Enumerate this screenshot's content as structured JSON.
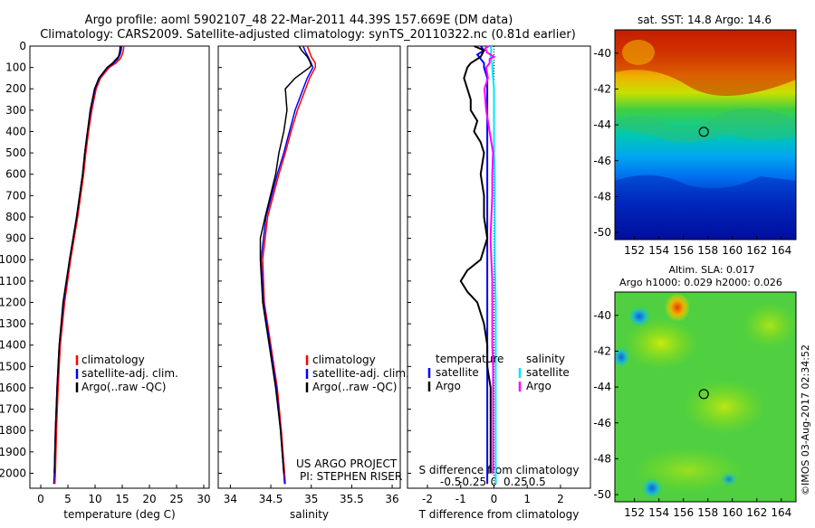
{
  "header": {
    "line1": "Argo profile: aoml 5902107_48 22-Mar-2011 44.39S 157.669E (DM data)",
    "line2": "Climatology: CARS2009. Satellite-adjusted climatology: synTS_20110322.nc (0.81d earlier)"
  },
  "colors": {
    "climatology": "#ff0000",
    "satellite": "#0000ff",
    "argo": "#000000",
    "salinity_satellite": "#00e5ff",
    "salinity_argo": "#ff00ff"
  },
  "chart_data": [
    {
      "type": "line",
      "id": "temperature",
      "xlabel": "temperature (deg C)",
      "ylabel": "",
      "xlim": [
        -2,
        31
      ],
      "ylim": [
        2070,
        0
      ],
      "xticks": [
        0,
        5,
        10,
        15,
        20,
        25,
        30
      ],
      "yticks": [
        0,
        100,
        200,
        300,
        400,
        500,
        600,
        700,
        800,
        900,
        1000,
        1100,
        1200,
        1300,
        1400,
        1500,
        1600,
        1700,
        1800,
        1900,
        2000
      ],
      "legend": [
        "climatology",
        "satellite-adj. clim.",
        "Argo(..raw -QC)"
      ],
      "series": [
        {
          "name": "climatology",
          "color": "#ff0000",
          "depth": [
            0,
            20,
            40,
            60,
            80,
            100,
            150,
            200,
            300,
            400,
            500,
            600,
            800,
            1000,
            1200,
            1400,
            1600,
            1800,
            2000,
            2050
          ],
          "values": [
            15.3,
            15.2,
            15.0,
            14.6,
            13.8,
            12.6,
            11.0,
            10.2,
            9.4,
            8.8,
            8.3,
            7.9,
            6.8,
            5.5,
            4.4,
            3.6,
            3.2,
            2.9,
            2.7,
            2.6
          ]
        },
        {
          "name": "satellite-adj. clim.",
          "color": "#0000ff",
          "depth": [
            0,
            20,
            40,
            60,
            80,
            100,
            150,
            200,
            300,
            400,
            500,
            600,
            800,
            1000,
            1200,
            1400,
            1600,
            1800,
            2000,
            2050
          ],
          "values": [
            14.9,
            14.8,
            14.6,
            14.2,
            13.4,
            12.3,
            10.8,
            10.0,
            9.2,
            8.6,
            8.1,
            7.7,
            6.6,
            5.3,
            4.2,
            3.4,
            3.0,
            2.7,
            2.5,
            2.4
          ]
        },
        {
          "name": "Argo(..raw -QC)",
          "color": "#000000",
          "depth": [
            0,
            10,
            30,
            50,
            60,
            80,
            100,
            150,
            200,
            300,
            400,
            500,
            600,
            800,
            1000,
            1200,
            1400,
            1600,
            1800,
            2000
          ],
          "values": [
            14.6,
            14.6,
            14.5,
            14.3,
            13.9,
            13.2,
            12.2,
            10.7,
            9.9,
            9.1,
            8.6,
            8.1,
            7.7,
            6.6,
            5.3,
            4.1,
            3.4,
            3.0,
            2.7,
            2.5
          ]
        }
      ]
    },
    {
      "type": "line",
      "id": "salinity",
      "xlabel": "salinity",
      "ylabel": "",
      "xlim": [
        33.85,
        36.1
      ],
      "ylim": [
        2070,
        0
      ],
      "xticks": [
        34,
        34.5,
        35,
        35.5,
        36
      ],
      "legend": [
        "climatology",
        "satellite-adj. clim.",
        "Argo(..raw -QC)"
      ],
      "annotation": [
        "US ARGO PROJECT",
        "PI: STEPHEN RISER"
      ],
      "series": [
        {
          "name": "climatology",
          "color": "#ff0000",
          "depth": [
            0,
            20,
            50,
            80,
            100,
            150,
            200,
            300,
            400,
            500,
            600,
            800,
            1000,
            1200,
            1400,
            1600,
            1800,
            2000,
            2050
          ],
          "values": [
            34.95,
            34.97,
            35.0,
            35.05,
            35.05,
            34.98,
            34.93,
            34.83,
            34.75,
            34.68,
            34.6,
            34.46,
            34.4,
            34.42,
            34.5,
            34.58,
            34.63,
            34.67,
            34.68
          ]
        },
        {
          "name": "satellite-adj. clim.",
          "color": "#0000ff",
          "depth": [
            0,
            20,
            50,
            80,
            100,
            150,
            200,
            300,
            400,
            500,
            600,
            800,
            1000,
            1200,
            1400,
            1600,
            1800,
            2000,
            2050
          ],
          "values": [
            34.9,
            34.92,
            34.96,
            35.0,
            35.02,
            34.95,
            34.9,
            34.8,
            34.73,
            34.66,
            34.58,
            34.44,
            34.38,
            34.41,
            34.49,
            34.57,
            34.62,
            34.66,
            34.67
          ]
        },
        {
          "name": "Argo(..raw -QC)",
          "color": "#000000",
          "depth": [
            0,
            20,
            50,
            70,
            90,
            100,
            150,
            200,
            300,
            400,
            500,
            600,
            800,
            900,
            1000,
            1200,
            1400,
            1600,
            1800,
            2000
          ],
          "values": [
            34.85,
            34.88,
            34.95,
            34.98,
            35.0,
            34.98,
            34.8,
            34.68,
            34.7,
            34.66,
            34.6,
            34.56,
            34.43,
            34.37,
            34.37,
            34.4,
            34.48,
            34.56,
            34.62,
            34.66
          ]
        }
      ]
    },
    {
      "type": "line",
      "id": "difference",
      "xlabel": "T difference from climatology",
      "xlabel_top": "S difference from climatology",
      "xlim": [
        -2.6,
        2.9
      ],
      "ylim": [
        2070,
        0
      ],
      "xticks": [
        -2,
        -1,
        0,
        1,
        2
      ],
      "xticks_s": [
        "-0.5",
        "-0.25",
        "0",
        "0.25",
        "0.5"
      ],
      "legend_t_title": "temperature",
      "legend_s_title": "salinity",
      "legend_t": [
        "satellite",
        "Argo"
      ],
      "legend_s": [
        "satellite",
        "Argo"
      ],
      "series": [
        {
          "name": "T satellite",
          "color": "#0000ff",
          "depth": [
            0,
            20,
            40,
            60,
            80,
            100,
            150,
            200,
            300,
            400,
            500,
            600,
            800,
            1000,
            1200,
            1400,
            1600,
            1800,
            2000,
            2050
          ],
          "values": [
            -0.4,
            -0.3,
            -0.5,
            -0.4,
            -0.3,
            -0.3,
            -0.2,
            -0.2,
            -0.2,
            -0.2,
            -0.2,
            -0.2,
            -0.2,
            -0.2,
            -0.2,
            -0.2,
            -0.2,
            -0.2,
            -0.2,
            -0.2
          ]
        },
        {
          "name": "T Argo",
          "color": "#000000",
          "depth": [
            0,
            20,
            50,
            80,
            100,
            150,
            200,
            250,
            300,
            350,
            400,
            450,
            500,
            600,
            700,
            800,
            900,
            1000,
            1050,
            1100,
            1150,
            1200,
            1300,
            1400,
            1500,
            1600,
            1800,
            2000
          ],
          "values": [
            -0.6,
            -0.3,
            -0.4,
            -0.7,
            -0.8,
            -0.9,
            -0.8,
            -0.7,
            -0.7,
            -0.5,
            -0.6,
            -0.4,
            -0.3,
            -0.4,
            -0.3,
            -0.3,
            -0.2,
            -0.4,
            -0.8,
            -1.0,
            -0.8,
            -0.5,
            -0.3,
            -0.2,
            -0.2,
            -0.1,
            -0.1,
            -0.1
          ]
        },
        {
          "name": "S satellite",
          "color": "#00e5ff",
          "depth": [
            0,
            20,
            50,
            80,
            100,
            150,
            200,
            300,
            400,
            500,
            600,
            800,
            1000,
            1200,
            1400,
            1600,
            1800,
            2000,
            2050
          ],
          "values": [
            -0.04,
            -0.03,
            -0.04,
            -0.02,
            -0.02,
            -0.01,
            0.0,
            0.0,
            0.0,
            0.0,
            0.01,
            0.01,
            0.01,
            0.02,
            0.02,
            0.02,
            0.02,
            0.02,
            0.02
          ]
        },
        {
          "name": "S Argo",
          "color": "#ff00ff",
          "depth": [
            0,
            10,
            30,
            50,
            60,
            80,
            100,
            150,
            200,
            300,
            400,
            500,
            600,
            700,
            800,
            900,
            1000,
            1100,
            1200,
            1300,
            1400,
            1500,
            1600,
            1800,
            2000
          ],
          "values": [
            -0.06,
            -0.1,
            -0.08,
            0.0,
            -0.05,
            -0.05,
            -0.09,
            -0.07,
            -0.11,
            -0.09,
            -0.05,
            -0.01,
            -0.02,
            -0.02,
            -0.03,
            -0.04,
            -0.03,
            -0.02,
            -0.02,
            -0.02,
            -0.02,
            -0.01,
            -0.01,
            -0.01,
            -0.01
          ]
        }
      ]
    },
    {
      "type": "heatmap",
      "id": "sst-map",
      "title": "sat. SST: 14.8 Argo: 14.6",
      "xticks": [
        152,
        154,
        156,
        158,
        160,
        162,
        164
      ],
      "yticks": [
        -40,
        -42,
        -44,
        -46,
        -48,
        -50
      ],
      "xlim": [
        150.4,
        165.2
      ],
      "ylim": [
        -50.4,
        -38.7
      ],
      "marker": {
        "lon": 157.669,
        "lat": -44.39
      }
    },
    {
      "type": "heatmap",
      "id": "sla-map",
      "title": [
        "Altim. SLA: 0.017",
        "Argo h1000: 0.029 h2000: 0.026"
      ],
      "xticks": [
        152,
        154,
        156,
        158,
        160,
        162,
        164
      ],
      "yticks": [
        -40,
        -42,
        -44,
        -46,
        -48,
        -50
      ],
      "xlim": [
        150.4,
        165.2
      ],
      "ylim": [
        -50.4,
        -38.7
      ],
      "marker": {
        "lon": 157.669,
        "lat": -44.39
      }
    }
  ],
  "credit": "©IMOS 03-Aug-2017 02:34:52"
}
